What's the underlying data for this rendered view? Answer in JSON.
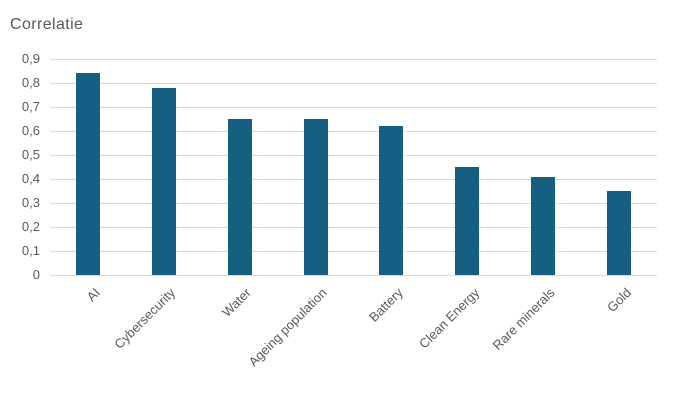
{
  "chart_data": {
    "type": "bar",
    "title": "Correlatie",
    "categories": [
      "AI",
      "Cybersecurity",
      "Water",
      "Ageing population",
      "Battery",
      "Clean Energy",
      "Rare minerals",
      "Gold"
    ],
    "values": [
      0.84,
      0.78,
      0.65,
      0.65,
      0.62,
      0.45,
      0.41,
      0.35
    ],
    "xlabel": "",
    "ylabel": "",
    "ylim": [
      0,
      0.9
    ],
    "grid": true,
    "legend": false,
    "yticks": [
      {
        "value": 0.0,
        "label": "0"
      },
      {
        "value": 0.1,
        "label": "0,1"
      },
      {
        "value": 0.2,
        "label": "0,2"
      },
      {
        "value": 0.3,
        "label": "0,3"
      },
      {
        "value": 0.4,
        "label": "0,4"
      },
      {
        "value": 0.5,
        "label": "0,5"
      },
      {
        "value": 0.6,
        "label": "0,6"
      },
      {
        "value": 0.7,
        "label": "0,7"
      },
      {
        "value": 0.8,
        "label": "0,8"
      },
      {
        "value": 0.9,
        "label": "0,9"
      }
    ],
    "colors": {
      "bar": "#156082",
      "grid": "#d9d9d9",
      "text": "#595959",
      "background": "#ffffff"
    }
  }
}
